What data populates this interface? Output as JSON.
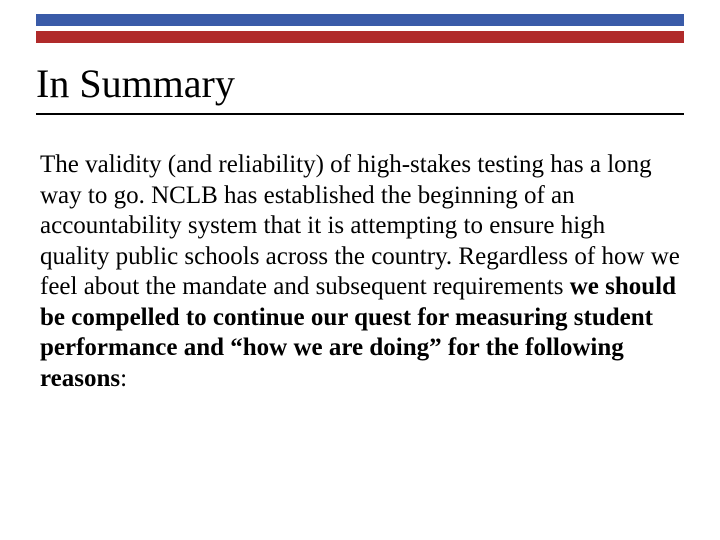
{
  "slide": {
    "title": "In Summary",
    "body_normal_1": "The validity (and reliability) of high-stakes testing has a long way to go.  NCLB has established the beginning of an accountability system that it is attempting to ensure high quality public schools across the country. Regardless of how we feel about the mandate and subsequent requirements ",
    "body_bold": "we should be compelled to continue our quest for measuring student performance and “how we are doing” for the following reasons",
    "body_normal_2": ":"
  },
  "style": {
    "bar_blue": "#3a5ba8",
    "bar_red": "#b02a2a",
    "background": "#ffffff",
    "title_fontsize": 40,
    "body_fontsize": 25,
    "underline_color": "#000000"
  }
}
